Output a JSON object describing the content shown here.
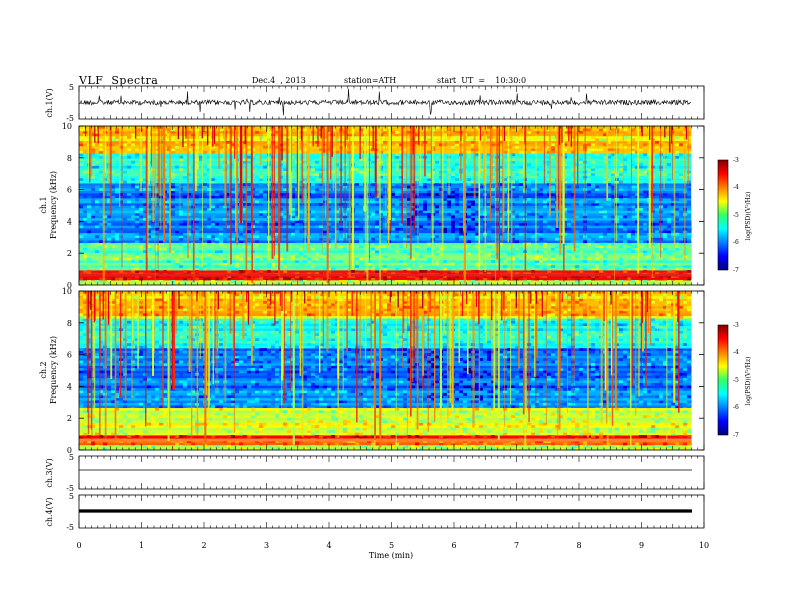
{
  "header": {
    "title": "VLF  Spectra",
    "date": "Dec.4  , 2013",
    "station": "station=ATH",
    "start": "start  UT  =    10:30:0"
  },
  "chart_data": [
    {
      "type": "line",
      "ylabel": "ch.1(V)",
      "ylim": [
        -5,
        5
      ],
      "y_ticks": [
        "5",
        "-5"
      ],
      "description_values": "noisy waveform centred near 0 V with spikes",
      "x_range_min": [
        0,
        9.8
      ]
    },
    {
      "type": "heatmap",
      "ylabel": "ch.1\nFrequency  (kHz)",
      "ylabel_lines": [
        "ch.1",
        "Frequency  (kHz)"
      ],
      "ylim": [
        0,
        10
      ],
      "y_ticks": [
        "0",
        "2",
        "4",
        "6",
        "8",
        "10"
      ],
      "colorbar": {
        "label": "log(PSD)(V²/Hz)",
        "range": [
          -7,
          -3
        ],
        "ticks": [
          "-3",
          "-4",
          "-5",
          "-6",
          "-7"
        ]
      },
      "x_range_min": [
        0,
        9.8
      ]
    },
    {
      "type": "heatmap",
      "ylabel_lines": [
        "ch.2",
        "Frequency  (kHz)"
      ],
      "ylim": [
        0,
        10
      ],
      "y_ticks": [
        "0",
        "2",
        "4",
        "6",
        "8",
        "10"
      ],
      "colorbar": {
        "label": "log(PSD)(V²/Hz)",
        "range": [
          -7,
          -3
        ],
        "ticks": [
          "-3",
          "-4",
          "-5",
          "-6",
          "-7"
        ]
      },
      "x_range_min": [
        0,
        9.8
      ]
    },
    {
      "type": "line",
      "ylabel": "ch.3(V)",
      "ylim": [
        -5,
        5
      ],
      "y_ticks": [
        "5",
        "-5"
      ],
      "x_range_min": [
        0,
        9.8
      ]
    },
    {
      "type": "line",
      "ylabel": "ch.4(V)",
      "ylim": [
        -5,
        5
      ],
      "y_ticks": [
        "5",
        "-5"
      ],
      "x_range_min": [
        0,
        9.8
      ]
    }
  ],
  "x_axis": {
    "label": "Time  (min)",
    "range": [
      0,
      10
    ],
    "ticks": [
      "0",
      "1",
      "2",
      "3",
      "4",
      "5",
      "6",
      "7",
      "8",
      "9",
      "10"
    ]
  },
  "colors": {
    "jet_low": "#00007f",
    "jet_high": "#7f0000"
  }
}
